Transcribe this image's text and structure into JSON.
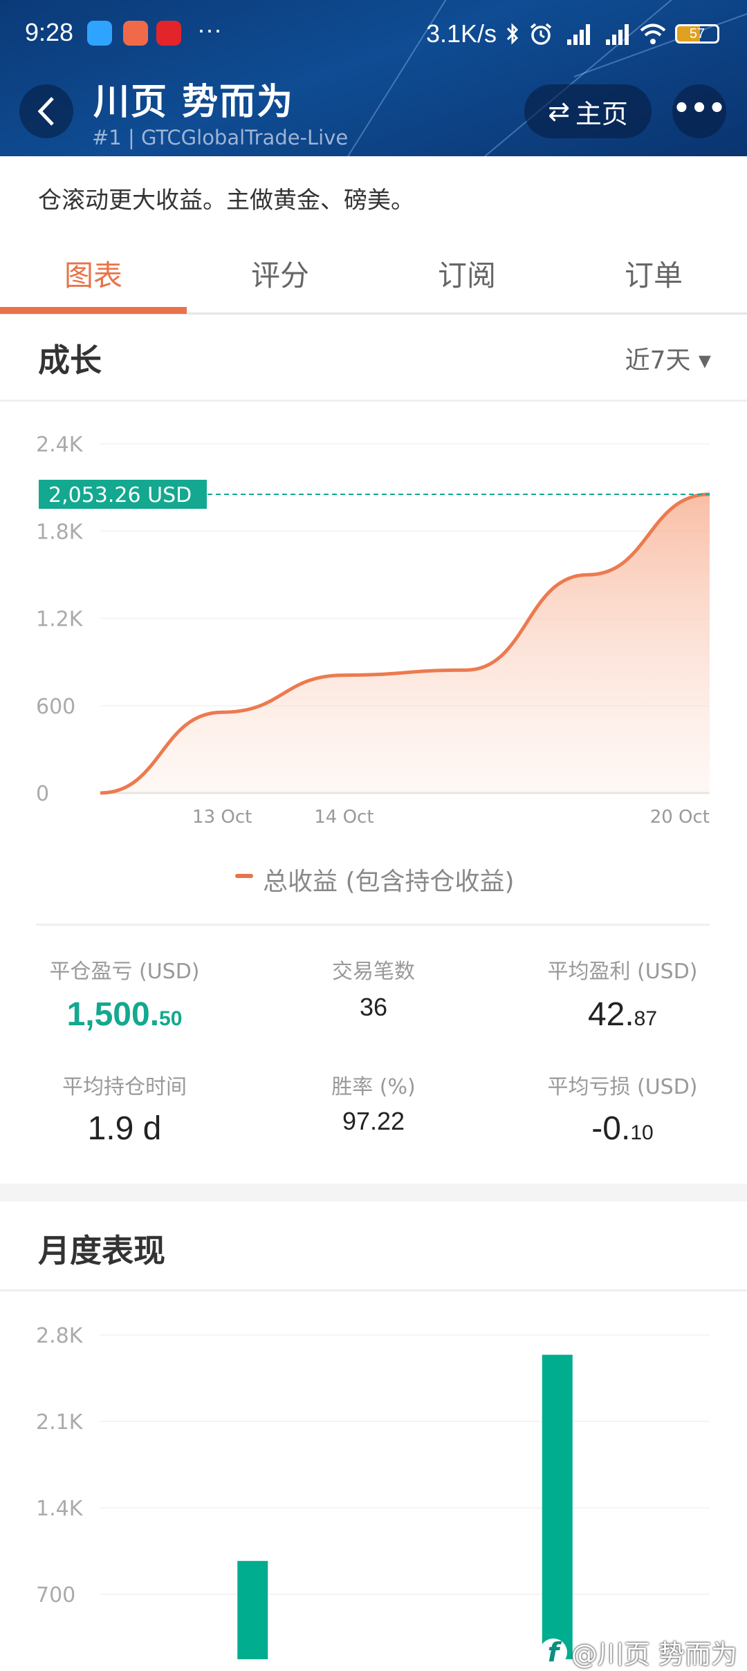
{
  "status_bar": {
    "time": "9:28",
    "overflow": "···",
    "net_speed": "3.1K/s",
    "battery": "57"
  },
  "header": {
    "title": "川页 势而为",
    "subtitle": "#1 | GTCGlobalTrade-Live",
    "home_label": "主页",
    "more_label": "•••"
  },
  "description": "仓滚动更大收益。主做黄金、磅美。",
  "tabs": [
    {
      "label": "图表",
      "active": true
    },
    {
      "label": "评分"
    },
    {
      "label": "订阅"
    },
    {
      "label": "订单"
    }
  ],
  "growth": {
    "title": "成长",
    "range": "近7天 ▾",
    "current_label": "2,053.26 USD",
    "legend": "总收益 (包含持仓收益)"
  },
  "stats": [
    {
      "label": "平仓盈亏 (USD)",
      "int": "1,500.",
      "dec": "50",
      "color": "#13a88f"
    },
    {
      "label": "交易笔数",
      "int": "36",
      "dec": ""
    },
    {
      "label": "平均盈利 (USD)",
      "int": "42.",
      "dec": "87"
    },
    {
      "label": "平均持仓时间",
      "int": "1.9 d",
      "dec": ""
    },
    {
      "label": "胜率 (%)",
      "int": "97.22",
      "dec": ""
    },
    {
      "label": "平均亏损 (USD)",
      "int": "-0.",
      "dec": "10"
    }
  ],
  "monthly": {
    "title": "月度表现"
  },
  "watermark": "@川页 势而为",
  "colors": {
    "accent": "#e8734a",
    "green": "#13a88f",
    "bar": "#00ad8e"
  },
  "chart_data": [
    {
      "type": "area",
      "x": [
        "",
        "13 Oct",
        "14 Oct",
        "",
        "",
        "20 Oct"
      ],
      "series": [
        {
          "name": "总收益 (包含持仓收益)",
          "values": [
            0,
            555,
            810,
            845,
            1500,
            2053.26
          ]
        }
      ],
      "yticks": [
        "0",
        "600",
        "1.2K",
        "1.8K",
        "2.4K"
      ],
      "ylim": [
        0,
        2400
      ],
      "grid": true,
      "legend": "bottom",
      "reference_line": 2053.26
    },
    {
      "type": "bar",
      "categories": [
        "",
        ""
      ],
      "values": [
        970,
        2640
      ],
      "yticks": [
        "700",
        "1.4K",
        "2.1K",
        "2.8K"
      ],
      "ylim": [
        0,
        2800
      ],
      "grid": true
    }
  ]
}
